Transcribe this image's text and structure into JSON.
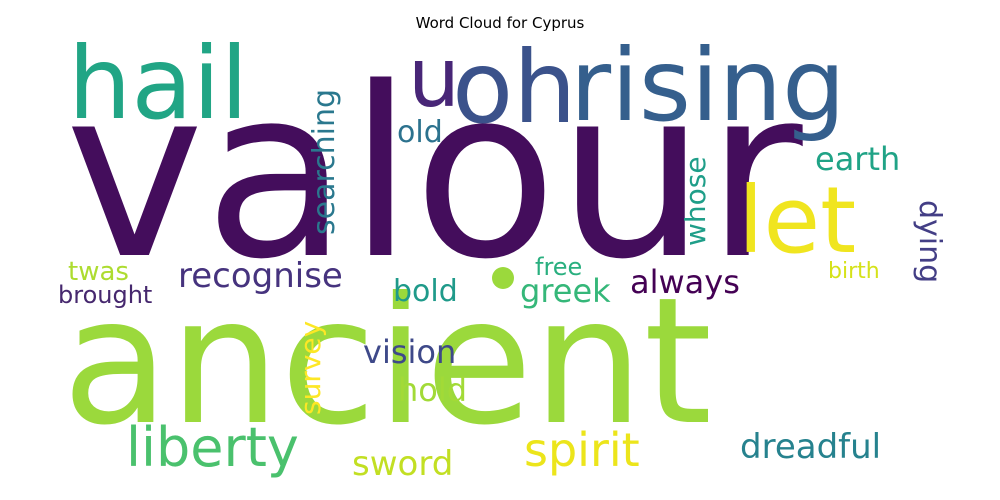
{
  "chart_data": {
    "type": "wordcloud",
    "title": "Word Cloud for Cyprus",
    "words": [
      {
        "text": "valour",
        "color": "#440d5c"
      },
      {
        "text": "ancient",
        "color": "#9bd93c"
      },
      {
        "text": "rising",
        "color": "#355f8d"
      },
      {
        "text": "oh",
        "color": "#3b528b"
      },
      {
        "text": "hail",
        "color": "#21a585"
      },
      {
        "text": "u",
        "color": "#482677"
      },
      {
        "text": "let",
        "color": "#f0e51f"
      },
      {
        "text": "liberty",
        "color": "#4ac16d"
      },
      {
        "text": "spirit",
        "color": "#ece51b"
      },
      {
        "text": "recognise",
        "color": "#46337e"
      },
      {
        "text": "searching",
        "color": "#2a788e"
      },
      {
        "text": "old",
        "color": "#2c728e"
      },
      {
        "text": "earth",
        "color": "#20a386"
      },
      {
        "text": "whose",
        "color": "#1f9e89"
      },
      {
        "text": "dying",
        "color": "#433e85"
      },
      {
        "text": "twas",
        "color": "#addc30"
      },
      {
        "text": "brought",
        "color": "#46286e"
      },
      {
        "text": "survey",
        "color": "#fde725"
      },
      {
        "text": "bold",
        "color": "#1f9a8a"
      },
      {
        "text": "greek",
        "color": "#35b779"
      },
      {
        "text": "always",
        "color": "#440154"
      },
      {
        "text": "free",
        "color": "#29af7f"
      },
      {
        "text": "birth",
        "color": "#d5e21a"
      },
      {
        "text": "vision",
        "color": "#3e4989"
      },
      {
        "text": "hold",
        "color": "#a2da37"
      },
      {
        "text": "dreadful",
        "color": "#26828e"
      },
      {
        "text": "sword",
        "color": "#c2df23"
      }
    ]
  }
}
